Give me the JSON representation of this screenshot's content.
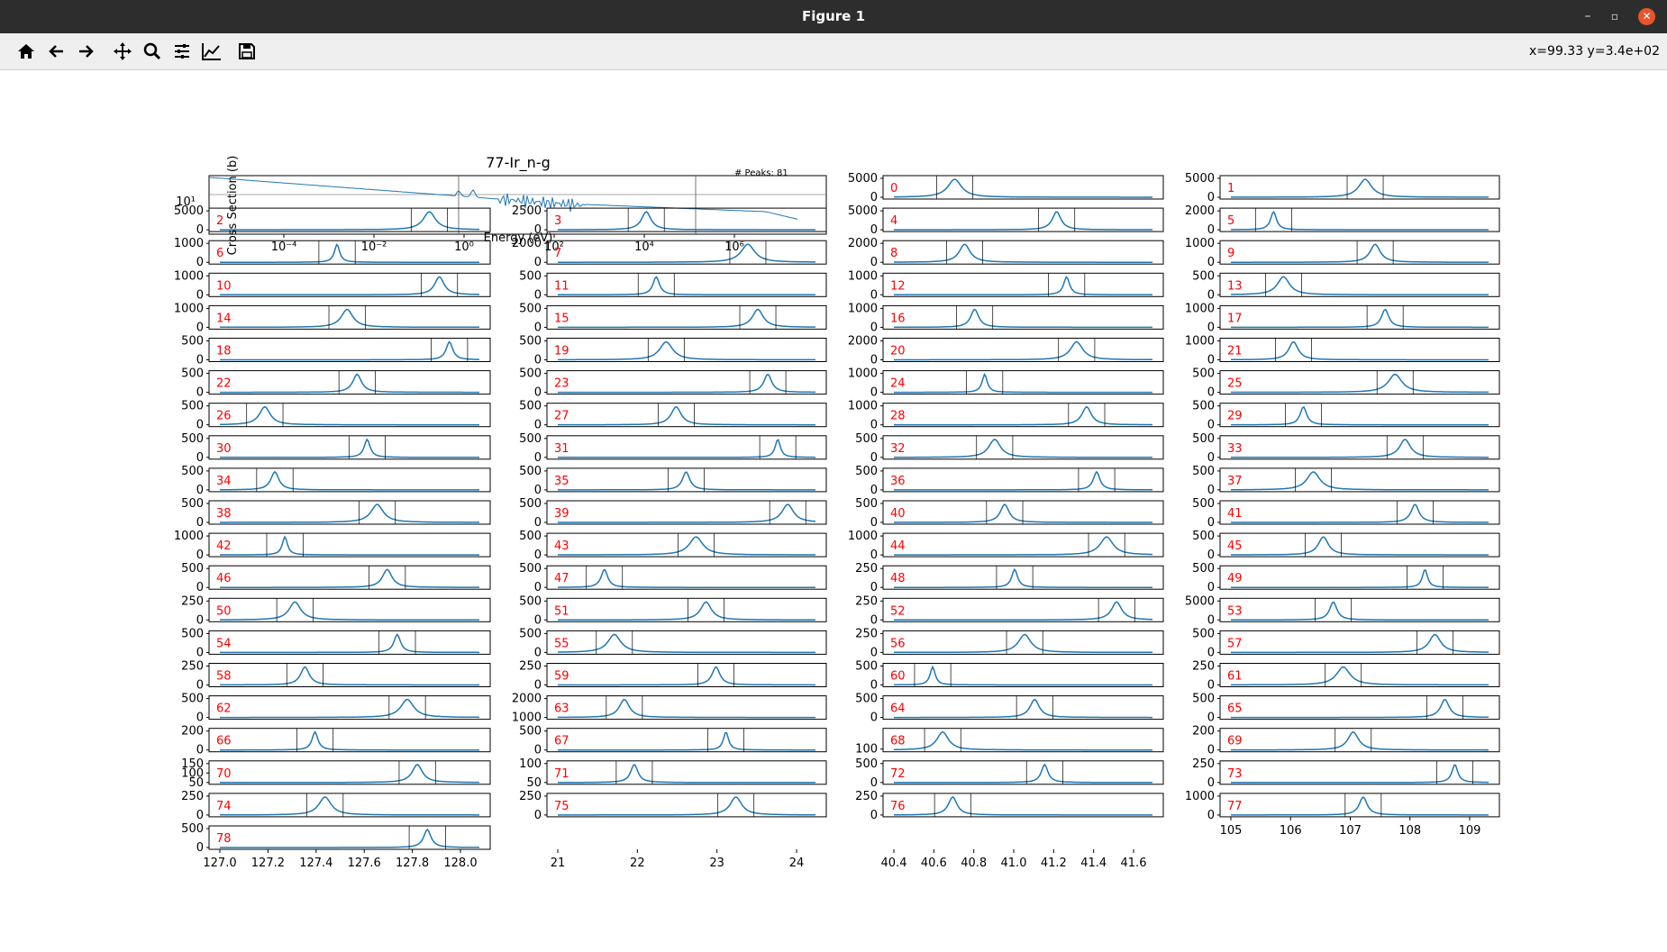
{
  "window": {
    "title": "Figure 1",
    "minimize_label": "–",
    "restore_label": "▫",
    "close_label": "✕"
  },
  "toolbar": {
    "coords": "x=99.33 y=3.4e+02",
    "tools": [
      {
        "name": "home-icon",
        "tip": "Home"
      },
      {
        "name": "back-arrow-icon",
        "tip": "Back"
      },
      {
        "name": "forward-arrow-icon",
        "tip": "Forward"
      },
      {
        "name": "pan-icon",
        "tip": "Pan"
      },
      {
        "name": "zoom-icon",
        "tip": "Zoom"
      },
      {
        "name": "subplots-icon",
        "tip": "Configure subplots"
      },
      {
        "name": "axes-edit-icon",
        "tip": "Edit axes"
      },
      {
        "name": "save-icon",
        "tip": "Save"
      }
    ]
  },
  "figure": {
    "overview": {
      "title": "77-Ir_n-g",
      "ylabel": "Cross Section (b)",
      "xlabel": "Energy (eV)",
      "peaks_text": "# Peaks: 81",
      "xscale": "log",
      "yscale": "log",
      "xticks": [
        "10⁻⁴",
        "10⁻²",
        "10⁰",
        "10²",
        "10⁴",
        "10⁶"
      ],
      "yticks": [
        "10¹"
      ]
    },
    "bottom_xticks": {
      "col1": [
        "127.0",
        "127.2",
        "127.4",
        "127.6",
        "127.8",
        "128.0"
      ],
      "col2": [
        "21",
        "22",
        "23",
        "24"
      ],
      "col3": [
        "40.4",
        "40.6",
        "40.8",
        "41.0",
        "41.2",
        "41.4",
        "41.6"
      ],
      "col4": [
        "105",
        "106",
        "107",
        "108",
        "109"
      ]
    },
    "line_color": "#1f77b4",
    "label_color": "#ff0000"
  },
  "chart_data": {
    "type": "line",
    "title": "77-Ir_n-g",
    "xlabel": "Energy (eV)",
    "ylabel": "Cross Section (b)",
    "annotation": "# Peaks: 81",
    "panels": [
      {
        "id": "0",
        "ymax": 5000,
        "yticks": [
          "0",
          "5000"
        ]
      },
      {
        "id": "1",
        "ymax": 5000,
        "yticks": [
          "0",
          "5000"
        ]
      },
      {
        "id": "2",
        "ymax": 5000,
        "yticks": [
          "0",
          "5000"
        ]
      },
      {
        "id": "3",
        "ymax": 2500,
        "yticks": [
          "0",
          "2500"
        ]
      },
      {
        "id": "4",
        "ymax": 5000,
        "yticks": [
          "0",
          "5000"
        ]
      },
      {
        "id": "5",
        "ymax": 2000,
        "yticks": [
          "0",
          "2000"
        ]
      },
      {
        "id": "6",
        "ymax": 1000,
        "yticks": [
          "0",
          "1000"
        ]
      },
      {
        "id": "7",
        "ymax": 2000,
        "yticks": [
          "0",
          "2000"
        ]
      },
      {
        "id": "8",
        "ymax": 2000,
        "yticks": [
          "0",
          "2000"
        ]
      },
      {
        "id": "9",
        "ymax": 1000,
        "yticks": [
          "0",
          "1000"
        ]
      },
      {
        "id": "10",
        "ymax": 1000,
        "yticks": [
          "0",
          "1000"
        ]
      },
      {
        "id": "11",
        "ymax": 500,
        "yticks": [
          "0",
          "500"
        ]
      },
      {
        "id": "12",
        "ymax": 1000,
        "yticks": [
          "0",
          "1000"
        ]
      },
      {
        "id": "13",
        "ymax": 500,
        "yticks": [
          "0",
          "500"
        ]
      },
      {
        "id": "14",
        "ymax": 1000,
        "yticks": [
          "0",
          "1000"
        ]
      },
      {
        "id": "15",
        "ymax": 500,
        "yticks": [
          "0",
          "500"
        ]
      },
      {
        "id": "16",
        "ymax": 1000,
        "yticks": [
          "0",
          "1000"
        ]
      },
      {
        "id": "17",
        "ymax": 1000,
        "yticks": [
          "0",
          "1000"
        ]
      },
      {
        "id": "18",
        "ymax": 500,
        "yticks": [
          "0",
          "500"
        ]
      },
      {
        "id": "19",
        "ymax": 500,
        "yticks": [
          "0",
          "500"
        ]
      },
      {
        "id": "20",
        "ymax": 2000,
        "yticks": [
          "0",
          "2000"
        ]
      },
      {
        "id": "21",
        "ymax": 1000,
        "yticks": [
          "0",
          "1000"
        ]
      },
      {
        "id": "22",
        "ymax": 500,
        "yticks": [
          "0",
          "500"
        ]
      },
      {
        "id": "23",
        "ymax": 500,
        "yticks": [
          "0",
          "500"
        ]
      },
      {
        "id": "24",
        "ymax": 1000,
        "yticks": [
          "0",
          "1000"
        ]
      },
      {
        "id": "25",
        "ymax": 500,
        "yticks": [
          "0",
          "500"
        ]
      },
      {
        "id": "26",
        "ymax": 500,
        "yticks": [
          "0",
          "500"
        ]
      },
      {
        "id": "27",
        "ymax": 500,
        "yticks": [
          "0",
          "500"
        ]
      },
      {
        "id": "28",
        "ymax": 1000,
        "yticks": [
          "0",
          "1000"
        ]
      },
      {
        "id": "29",
        "ymax": 500,
        "yticks": [
          "0",
          "500"
        ]
      },
      {
        "id": "30",
        "ymax": 500,
        "yticks": [
          "0",
          "500"
        ]
      },
      {
        "id": "31",
        "ymax": 500,
        "yticks": [
          "0",
          "500"
        ]
      },
      {
        "id": "32",
        "ymax": 500,
        "yticks": [
          "0",
          "500"
        ]
      },
      {
        "id": "33",
        "ymax": 500,
        "yticks": [
          "0",
          "500"
        ]
      },
      {
        "id": "34",
        "ymax": 500,
        "yticks": [
          "0",
          "500"
        ]
      },
      {
        "id": "35",
        "ymax": 500,
        "yticks": [
          "0",
          "500"
        ]
      },
      {
        "id": "36",
        "ymax": 500,
        "yticks": [
          "0",
          "500"
        ]
      },
      {
        "id": "37",
        "ymax": 500,
        "yticks": [
          "0",
          "500"
        ]
      },
      {
        "id": "38",
        "ymax": 500,
        "yticks": [
          "0",
          "500"
        ]
      },
      {
        "id": "39",
        "ymax": 500,
        "yticks": [
          "0",
          "500"
        ]
      },
      {
        "id": "40",
        "ymax": 500,
        "yticks": [
          "0",
          "500"
        ]
      },
      {
        "id": "41",
        "ymax": 500,
        "yticks": [
          "0",
          "500"
        ]
      },
      {
        "id": "42",
        "ymax": 1000,
        "yticks": [
          "0",
          "1000"
        ]
      },
      {
        "id": "43",
        "ymax": 500,
        "yticks": [
          "0",
          "500"
        ]
      },
      {
        "id": "44",
        "ymax": 1000,
        "yticks": [
          "0",
          "1000"
        ]
      },
      {
        "id": "45",
        "ymax": 500,
        "yticks": [
          "0",
          "500"
        ]
      },
      {
        "id": "46",
        "ymax": 500,
        "yticks": [
          "0",
          "500"
        ]
      },
      {
        "id": "47",
        "ymax": 500,
        "yticks": [
          "0",
          "500"
        ]
      },
      {
        "id": "48",
        "ymax": 250,
        "yticks": [
          "0",
          "250"
        ]
      },
      {
        "id": "49",
        "ymax": 500,
        "yticks": [
          "0",
          "500"
        ]
      },
      {
        "id": "50",
        "ymax": 250,
        "yticks": [
          "0",
          "250"
        ]
      },
      {
        "id": "51",
        "ymax": 500,
        "yticks": [
          "0",
          "500"
        ]
      },
      {
        "id": "52",
        "ymax": 250,
        "yticks": [
          "0",
          "250"
        ]
      },
      {
        "id": "53",
        "ymax": 5000,
        "yticks": [
          "0",
          "5000"
        ]
      },
      {
        "id": "54",
        "ymax": 500,
        "yticks": [
          "0",
          "500"
        ]
      },
      {
        "id": "55",
        "ymax": 500,
        "yticks": [
          "0",
          "500"
        ]
      },
      {
        "id": "56",
        "ymax": 250,
        "yticks": [
          "0",
          "250"
        ]
      },
      {
        "id": "57",
        "ymax": 500,
        "yticks": [
          "0",
          "500"
        ]
      },
      {
        "id": "58",
        "ymax": 250,
        "yticks": [
          "0",
          "250"
        ]
      },
      {
        "id": "59",
        "ymax": 250,
        "yticks": [
          "0",
          "250"
        ]
      },
      {
        "id": "60",
        "ymax": 500,
        "yticks": [
          "0",
          "500"
        ]
      },
      {
        "id": "61",
        "ymax": 250,
        "yticks": [
          "0",
          "250"
        ]
      },
      {
        "id": "62",
        "ymax": 500,
        "yticks": [
          "0",
          "500"
        ]
      },
      {
        "id": "63",
        "ymax": 2000,
        "yticks": [
          "1000",
          "2000"
        ]
      },
      {
        "id": "64",
        "ymax": 500,
        "yticks": [
          "0",
          "500"
        ]
      },
      {
        "id": "65",
        "ymax": 500,
        "yticks": [
          "0",
          "500"
        ]
      },
      {
        "id": "66",
        "ymax": 200,
        "yticks": [
          "0",
          "200"
        ]
      },
      {
        "id": "67",
        "ymax": 500,
        "yticks": [
          "0",
          "500"
        ]
      },
      {
        "id": "68",
        "ymax": 100,
        "yticks": [
          "100"
        ]
      },
      {
        "id": "69",
        "ymax": 200,
        "yticks": [
          "0",
          "200"
        ]
      },
      {
        "id": "70",
        "ymax": 150,
        "yticks": [
          "50",
          "100",
          "150"
        ]
      },
      {
        "id": "71",
        "ymax": 100,
        "yticks": [
          "50",
          "100"
        ]
      },
      {
        "id": "72",
        "ymax": 500,
        "yticks": [
          "0",
          "500"
        ]
      },
      {
        "id": "73",
        "ymax": 250,
        "yticks": [
          "0",
          "250"
        ]
      },
      {
        "id": "74",
        "ymax": 250,
        "yticks": [
          "0",
          "250"
        ]
      },
      {
        "id": "75",
        "ymax": 250,
        "yticks": [
          "0",
          "250"
        ]
      },
      {
        "id": "76",
        "ymax": 250,
        "yticks": [
          "0",
          "250"
        ]
      },
      {
        "id": "77",
        "ymax": 1000,
        "yticks": [
          "0",
          "1000"
        ]
      },
      {
        "id": "78",
        "ymax": 500,
        "yticks": [
          "0",
          "500"
        ]
      }
    ]
  }
}
